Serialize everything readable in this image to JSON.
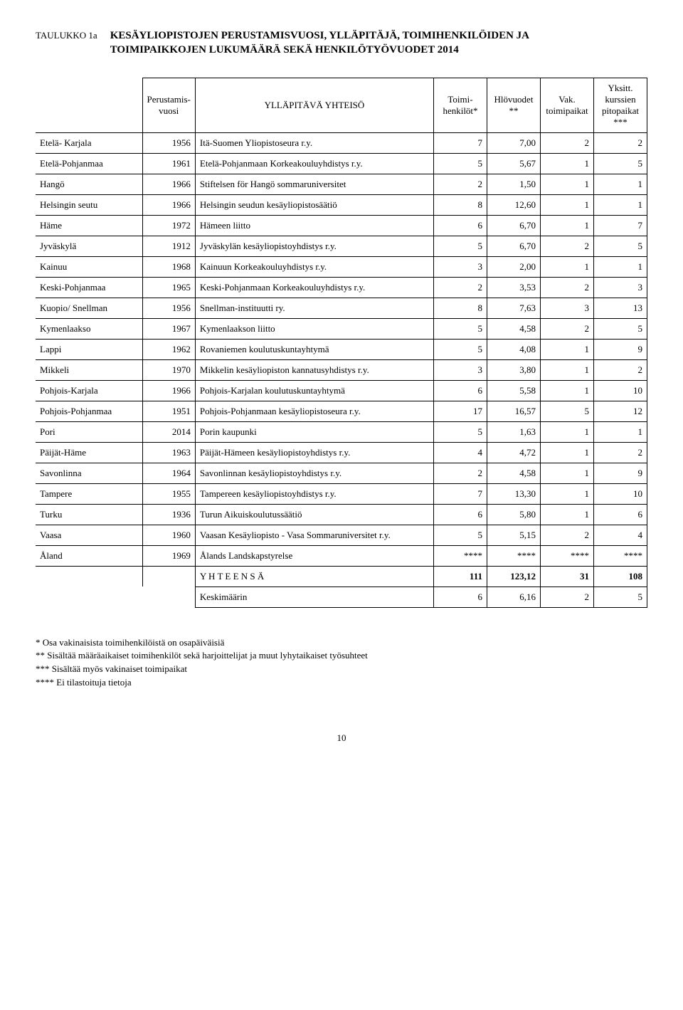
{
  "table_label": "TAULUKKO 1a",
  "title_line1": "KESÄYLIOPISTOJEN PERUSTAMISVUOSI, YLLÄPITÄJÄ, TOIMIHENKILÖIDEN JA",
  "title_line2": "TOIMIPAIKKOJEN LUKUMÄÄRÄ SEKÄ HENKILÖTYÖVUODET 2014",
  "columns": {
    "region": "",
    "perust": "Perustamis-\nvuosi",
    "yllapitava": "YLLÄPITÄVÄ YHTEISÖ",
    "toimi": "Toimi-\nhenkilöt*",
    "hlov": "Hlövuodet\n**",
    "vak": "Vak.\ntoimipaikat",
    "yksitt": "Yksitt. kurssien\npitopaikat ***"
  },
  "rows": [
    {
      "region": "Etelä- Karjala",
      "year": "1956",
      "org": "Itä-Suomen Yliopistoseura r.y.",
      "c1": "7",
      "c2": "7,00",
      "c3": "2",
      "c4": "2"
    },
    {
      "region": "Etelä-Pohjanmaa",
      "year": "1961",
      "org": "Etelä-Pohjanmaan Korkeakouluyhdistys r.y.",
      "c1": "5",
      "c2": "5,67",
      "c3": "1",
      "c4": "5"
    },
    {
      "region": "Hangö",
      "year": "1966",
      "org": "Stiftelsen för Hangö sommaruniversitet",
      "c1": "2",
      "c2": "1,50",
      "c3": "1",
      "c4": "1"
    },
    {
      "region": "Helsingin seutu",
      "year": "1966",
      "org": "Helsingin seudun kesäyliopistosäätiö",
      "c1": "8",
      "c2": "12,60",
      "c3": "1",
      "c4": "1"
    },
    {
      "region": "Häme",
      "year": "1972",
      "org": "Hämeen liitto",
      "c1": "6",
      "c2": "6,70",
      "c3": "1",
      "c4": "7"
    },
    {
      "region": "Jyväskylä",
      "year": "1912",
      "org": "Jyväskylän kesäyliopistoyhdistys r.y.",
      "c1": "5",
      "c2": "6,70",
      "c3": "2",
      "c4": "5"
    },
    {
      "region": "Kainuu",
      "year": "1968",
      "org": "Kainuun Korkeakouluyhdistys r.y.",
      "c1": "3",
      "c2": "2,00",
      "c3": "1",
      "c4": "1"
    },
    {
      "region": "Keski-Pohjanmaa",
      "year": "1965",
      "org": "Keski-Pohjanmaan Korkeakouluyhdistys r.y.",
      "c1": "2",
      "c2": "3,53",
      "c3": "2",
      "c4": "3"
    },
    {
      "region": "Kuopio/ Snellman",
      "year": "1956",
      "org": "Snellman-instituutti ry.",
      "c1": "8",
      "c2": "7,63",
      "c3": "3",
      "c4": "13"
    },
    {
      "region": "Kymenlaakso",
      "year": "1967",
      "org": "Kymenlaakson liitto",
      "c1": "5",
      "c2": "4,58",
      "c3": "2",
      "c4": "5"
    },
    {
      "region": "Lappi",
      "year": "1962",
      "org": "Rovaniemen koulutuskuntayhtymä",
      "c1": "5",
      "c2": "4,08",
      "c3": "1",
      "c4": "9"
    },
    {
      "region": "Mikkeli",
      "year": "1970",
      "org": "Mikkelin kesäyliopiston kannatusyhdistys r.y.",
      "c1": "3",
      "c2": "3,80",
      "c3": "1",
      "c4": "2"
    },
    {
      "region": "Pohjois-Karjala",
      "year": "1966",
      "org": "Pohjois-Karjalan koulutuskuntayhtymä",
      "c1": "6",
      "c2": "5,58",
      "c3": "1",
      "c4": "10"
    },
    {
      "region": "Pohjois-Pohjanmaa",
      "year": "1951",
      "org": "Pohjois-Pohjanmaan kesäyliopistoseura r.y.",
      "c1": "17",
      "c2": "16,57",
      "c3": "5",
      "c4": "12"
    },
    {
      "region": "Pori",
      "year": "2014",
      "org": "Porin kaupunki",
      "c1": "5",
      "c2": "1,63",
      "c3": "1",
      "c4": "1"
    },
    {
      "region": "Päijät-Häme",
      "year": "1963",
      "org": "Päijät-Hämeen kesäyliopistoyhdistys r.y.",
      "c1": "4",
      "c2": "4,72",
      "c3": "1",
      "c4": "2"
    },
    {
      "region": "Savonlinna",
      "year": "1964",
      "org": "Savonlinnan kesäyliopistoyhdistys r.y.",
      "c1": "2",
      "c2": "4,58",
      "c3": "1",
      "c4": "9"
    },
    {
      "region": "Tampere",
      "year": "1955",
      "org": "Tampereen kesäyliopistoyhdistys r.y.",
      "c1": "7",
      "c2": "13,30",
      "c3": "1",
      "c4": "10"
    },
    {
      "region": "Turku",
      "year": "1936",
      "org": "Turun Aikuiskoulutussäätiö",
      "c1": "6",
      "c2": "5,80",
      "c3": "1",
      "c4": "6"
    },
    {
      "region": "Vaasa",
      "year": "1960",
      "org": "Vaasan Kesäyliopisto  - Vasa Sommaruniversitet r.y.",
      "c1": "5",
      "c2": "5,15",
      "c3": "2",
      "c4": "4"
    },
    {
      "region": "Åland",
      "year": "1969",
      "org": "Ålands Landskapstyrelse",
      "c1": "****",
      "c2": "****",
      "c3": "****",
      "c4": "****"
    }
  ],
  "totals": {
    "label": "Y H T E E N S Ä",
    "c1": "111",
    "c2": "123,12",
    "c3": "31",
    "c4": "108"
  },
  "average": {
    "label": "Keskimäärin",
    "c1": "6",
    "c2": "6,16",
    "c3": "2",
    "c4": "5"
  },
  "footnotes": [
    "* Osa vakinaisista toimihenkilöistä on osapäiväisiä",
    "** Sisältää määräaikaiset toimihenkilöt sekä harjoittelijat ja muut lyhytaikaiset työsuhteet",
    "*** Sisältää myös vakinaiset toimipaikat",
    "**** Ei tilastoituja tietoja"
  ],
  "page_number": "10"
}
